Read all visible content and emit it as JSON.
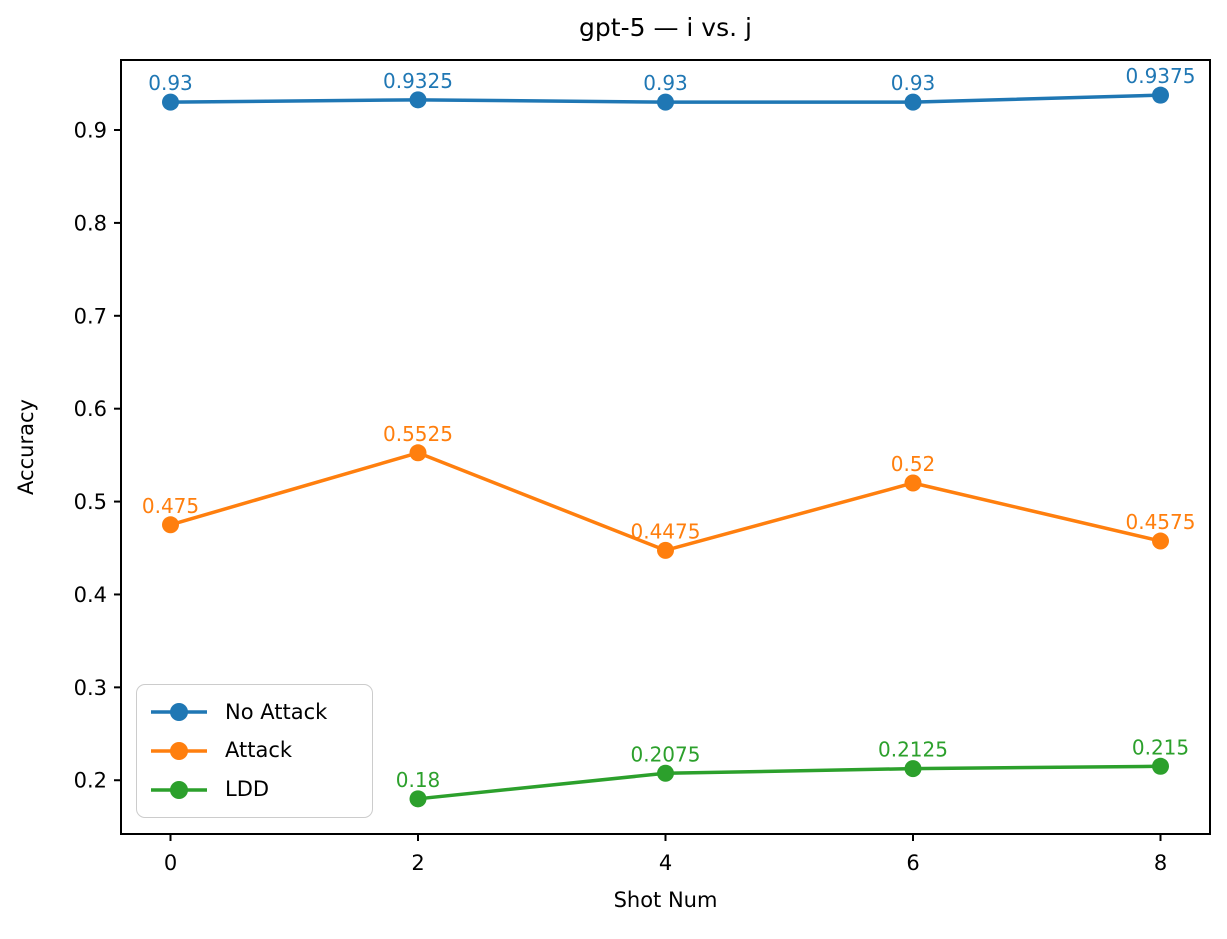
{
  "figure": {
    "background_color": "#ffffff",
    "axis_color": "#000000",
    "legend_border_color": "#cccccc"
  },
  "chart_data": {
    "type": "line",
    "title": "gpt-5 — i vs. j",
    "xlabel": "Shot Num",
    "ylabel": "Accuracy",
    "xlim": [
      -0.4,
      8.4
    ],
    "ylim": [
      0.142125,
      0.975375
    ],
    "xticks": [
      0,
      2,
      4,
      6,
      8
    ],
    "yticks": [
      0.2,
      0.3,
      0.4,
      0.5,
      0.6,
      0.7,
      0.8,
      0.9
    ],
    "grid": false,
    "legend_position": "lower left",
    "series": [
      {
        "name": "No Attack",
        "color": "#1f77b4",
        "x": [
          0,
          2,
          4,
          6,
          8
        ],
        "y": [
          0.93,
          0.9325,
          0.93,
          0.93,
          0.9375
        ],
        "point_labels": [
          "0.93",
          "0.9325",
          "0.93",
          "0.93",
          "0.9375"
        ]
      },
      {
        "name": "Attack",
        "color": "#ff7f0e",
        "x": [
          0,
          2,
          4,
          6,
          8
        ],
        "y": [
          0.475,
          0.5525,
          0.4475,
          0.52,
          0.4575
        ],
        "point_labels": [
          "0.475",
          "0.5525",
          "0.4475",
          "0.52",
          "0.4575"
        ]
      },
      {
        "name": "LDD",
        "color": "#2ca02c",
        "x": [
          2,
          4,
          6,
          8
        ],
        "y": [
          0.18,
          0.2075,
          0.2125,
          0.215
        ],
        "point_labels": [
          "0.18",
          "0.2075",
          "0.2125",
          "0.215"
        ]
      }
    ]
  }
}
